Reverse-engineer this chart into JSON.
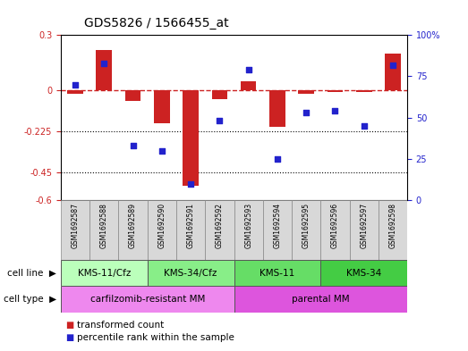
{
  "title": "GDS5826 / 1566455_at",
  "samples": [
    "GSM1692587",
    "GSM1692588",
    "GSM1692589",
    "GSM1692590",
    "GSM1692591",
    "GSM1692592",
    "GSM1692593",
    "GSM1692594",
    "GSM1692595",
    "GSM1692596",
    "GSM1692597",
    "GSM1692598"
  ],
  "transformed_count": [
    -0.02,
    0.22,
    -0.06,
    -0.18,
    -0.52,
    -0.05,
    0.05,
    -0.2,
    -0.02,
    -0.01,
    -0.01,
    0.2
  ],
  "percentile_rank": [
    70,
    83,
    33,
    30,
    10,
    48,
    79,
    25,
    53,
    54,
    45,
    82
  ],
  "cell_line_groups": [
    {
      "label": "KMS-11/Cfz",
      "start": 0,
      "end": 3,
      "color": "#bbffbb"
    },
    {
      "label": "KMS-34/Cfz",
      "start": 3,
      "end": 6,
      "color": "#88ee88"
    },
    {
      "label": "KMS-11",
      "start": 6,
      "end": 9,
      "color": "#66dd66"
    },
    {
      "label": "KMS-34",
      "start": 9,
      "end": 12,
      "color": "#44cc44"
    }
  ],
  "cell_type_groups": [
    {
      "label": "carfilzomib-resistant MM",
      "start": 0,
      "end": 6,
      "color": "#ee88ee"
    },
    {
      "label": "parental MM",
      "start": 6,
      "end": 12,
      "color": "#dd55dd"
    }
  ],
  "ylim": [
    -0.6,
    0.3
  ],
  "yticks_left": [
    -0.6,
    -0.45,
    -0.225,
    0.0,
    0.3
  ],
  "ytick_labels_left": [
    "-0.6",
    "-0.45",
    "-0.225",
    "0",
    "0.3"
  ],
  "yticks_right": [
    0,
    25,
    50,
    75,
    100
  ],
  "ytick_labels_right": [
    "0",
    "25",
    "50",
    "75",
    "100%"
  ],
  "hline_y": 0.0,
  "dotted_lines": [
    -0.225,
    -0.45
  ],
  "bar_color": "#cc2222",
  "scatter_color": "#2222cc",
  "bar_width": 0.55,
  "scatter_size": 22,
  "title_fontsize": 10,
  "tick_fontsize": 7,
  "label_fontsize": 8,
  "legend_fontsize": 7.5,
  "sample_fontsize": 5.5,
  "group_fontsize": 7.5,
  "row_label_fontsize": 7.5
}
